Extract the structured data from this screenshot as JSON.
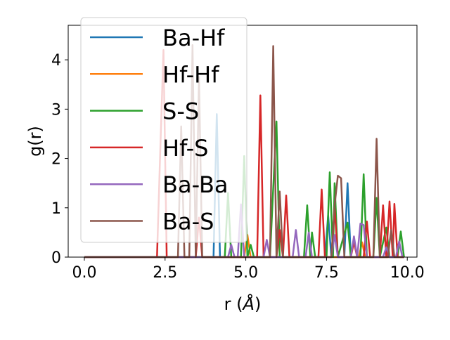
{
  "chart_data": {
    "type": "line",
    "xlabel": "r (Å)",
    "xlabel_main": "r (",
    "xlabel_unit": "Å",
    "xlabel_close": ")",
    "ylabel": "g(r)",
    "xlim": [
      -0.5,
      10.3
    ],
    "ylim": [
      0,
      4.7
    ],
    "xticks": [
      0.0,
      2.5,
      5.0,
      7.5,
      10.0
    ],
    "xtick_labels": [
      "0.0",
      "2.5",
      "5.0",
      "7.5",
      "10.0"
    ],
    "yticks": [
      0,
      1,
      2,
      3,
      4
    ],
    "ytick_labels": [
      "0",
      "1",
      "2",
      "3",
      "4"
    ],
    "grid": false,
    "legend_placement": "upper left",
    "series": [
      {
        "name": "Ba-Hf",
        "color": "#1f77b4",
        "points": [
          [
            0,
            0
          ],
          [
            4.0,
            0
          ],
          [
            4.1,
            2.9
          ],
          [
            4.2,
            0
          ],
          [
            7.45,
            0
          ],
          [
            7.55,
            0.85
          ],
          [
            7.65,
            0
          ],
          [
            8.05,
            0
          ],
          [
            8.15,
            1.5
          ],
          [
            8.25,
            0
          ],
          [
            9.9,
            0
          ]
        ]
      },
      {
        "name": "Hf-Hf",
        "color": "#ff7f0e",
        "points": [
          [
            0,
            0
          ],
          [
            4.95,
            0
          ],
          [
            5.05,
            0.45
          ],
          [
            5.15,
            0
          ],
          [
            8.5,
            0
          ],
          [
            8.6,
            0.3
          ],
          [
            8.7,
            0
          ],
          [
            9.9,
            0
          ]
        ]
      },
      {
        "name": "S-S",
        "color": "#2ca02c",
        "points": [
          [
            0,
            0
          ],
          [
            4.35,
            0
          ],
          [
            4.45,
            1.3
          ],
          [
            4.55,
            0
          ],
          [
            4.85,
            0
          ],
          [
            4.95,
            2.05
          ],
          [
            5.05,
            0
          ],
          [
            5.15,
            0.25
          ],
          [
            5.25,
            0
          ],
          [
            5.75,
            0
          ],
          [
            5.85,
            1.4
          ],
          [
            5.95,
            2.75
          ],
          [
            6.05,
            0
          ],
          [
            6.8,
            0
          ],
          [
            6.9,
            1.05
          ],
          [
            7.0,
            0
          ],
          [
            7.05,
            0.5
          ],
          [
            7.15,
            0
          ],
          [
            7.5,
            0
          ],
          [
            7.6,
            1.72
          ],
          [
            7.7,
            0
          ],
          [
            7.75,
            1.5
          ],
          [
            7.85,
            0
          ],
          [
            8.15,
            0.7
          ],
          [
            8.25,
            0
          ],
          [
            8.55,
            0
          ],
          [
            8.65,
            1.68
          ],
          [
            8.75,
            0
          ],
          [
            8.95,
            0
          ],
          [
            9.05,
            1.2
          ],
          [
            9.15,
            0
          ],
          [
            9.35,
            0.6
          ],
          [
            9.45,
            0
          ],
          [
            9.7,
            0
          ],
          [
            9.8,
            0.52
          ],
          [
            9.9,
            0
          ]
        ]
      },
      {
        "name": "Hf-S",
        "color": "#d62728",
        "points": [
          [
            0,
            0
          ],
          [
            2.25,
            0
          ],
          [
            2.35,
            2.15
          ],
          [
            2.45,
            4.2
          ],
          [
            2.55,
            0
          ],
          [
            3.45,
            0
          ],
          [
            3.55,
            0.8
          ],
          [
            3.65,
            0
          ],
          [
            5.35,
            0
          ],
          [
            5.45,
            3.28
          ],
          [
            5.55,
            0
          ],
          [
            5.95,
            0
          ],
          [
            6.05,
            0.55
          ],
          [
            6.15,
            0
          ],
          [
            6.25,
            1.25
          ],
          [
            6.35,
            0
          ],
          [
            7.25,
            0
          ],
          [
            7.35,
            1.37
          ],
          [
            7.45,
            0
          ],
          [
            7.65,
            0
          ],
          [
            7.75,
            1.0
          ],
          [
            7.85,
            0
          ],
          [
            8.25,
            0
          ],
          [
            8.35,
            0.3
          ],
          [
            8.45,
            0
          ],
          [
            8.65,
            0
          ],
          [
            8.75,
            0.72
          ],
          [
            8.85,
            0
          ],
          [
            9.15,
            0
          ],
          [
            9.25,
            1.05
          ],
          [
            9.35,
            0
          ],
          [
            9.45,
            1.13
          ],
          [
            9.55,
            0
          ],
          [
            9.6,
            1.08
          ],
          [
            9.7,
            0
          ],
          [
            9.9,
            0
          ]
        ]
      },
      {
        "name": "Ba-Ba",
        "color": "#9467bd",
        "points": [
          [
            0,
            0
          ],
          [
            4.45,
            0
          ],
          [
            4.55,
            0.25
          ],
          [
            4.65,
            0
          ],
          [
            4.75,
            0
          ],
          [
            4.85,
            1.07
          ],
          [
            4.95,
            0
          ],
          [
            5.55,
            0
          ],
          [
            5.65,
            0.35
          ],
          [
            5.75,
            0
          ],
          [
            6.45,
            0
          ],
          [
            6.55,
            0.55
          ],
          [
            6.65,
            0
          ],
          [
            6.85,
            0
          ],
          [
            6.95,
            0.5
          ],
          [
            7.05,
            0
          ],
          [
            7.65,
            0
          ],
          [
            7.75,
            0.45
          ],
          [
            7.85,
            0
          ],
          [
            8.25,
            0
          ],
          [
            8.35,
            0.42
          ],
          [
            8.45,
            0
          ],
          [
            8.55,
            0.68
          ],
          [
            8.65,
            0.65
          ],
          [
            8.75,
            0
          ],
          [
            9.25,
            0
          ],
          [
            9.35,
            0.2
          ],
          [
            9.45,
            0
          ],
          [
            9.65,
            0
          ],
          [
            9.75,
            0.32
          ],
          [
            9.85,
            0
          ],
          [
            9.9,
            0
          ]
        ]
      },
      {
        "name": "Ba-S",
        "color": "#8c564b",
        "points": [
          [
            0,
            0
          ],
          [
            2.9,
            0
          ],
          [
            3.0,
            2.65
          ],
          [
            3.1,
            0
          ],
          [
            3.25,
            0
          ],
          [
            3.35,
            4.3
          ],
          [
            3.45,
            0
          ],
          [
            3.55,
            3.65
          ],
          [
            3.65,
            0
          ],
          [
            5.75,
            0
          ],
          [
            5.85,
            4.28
          ],
          [
            5.95,
            0
          ],
          [
            6.05,
            1.33
          ],
          [
            6.15,
            0
          ],
          [
            7.65,
            0
          ],
          [
            7.75,
            1.05
          ],
          [
            7.85,
            1.65
          ],
          [
            7.95,
            1.6
          ],
          [
            8.05,
            0
          ],
          [
            8.95,
            0
          ],
          [
            9.05,
            2.4
          ],
          [
            9.15,
            0
          ],
          [
            9.4,
            0
          ],
          [
            9.5,
            0.55
          ],
          [
            9.6,
            0
          ],
          [
            9.9,
            0
          ]
        ]
      }
    ]
  }
}
